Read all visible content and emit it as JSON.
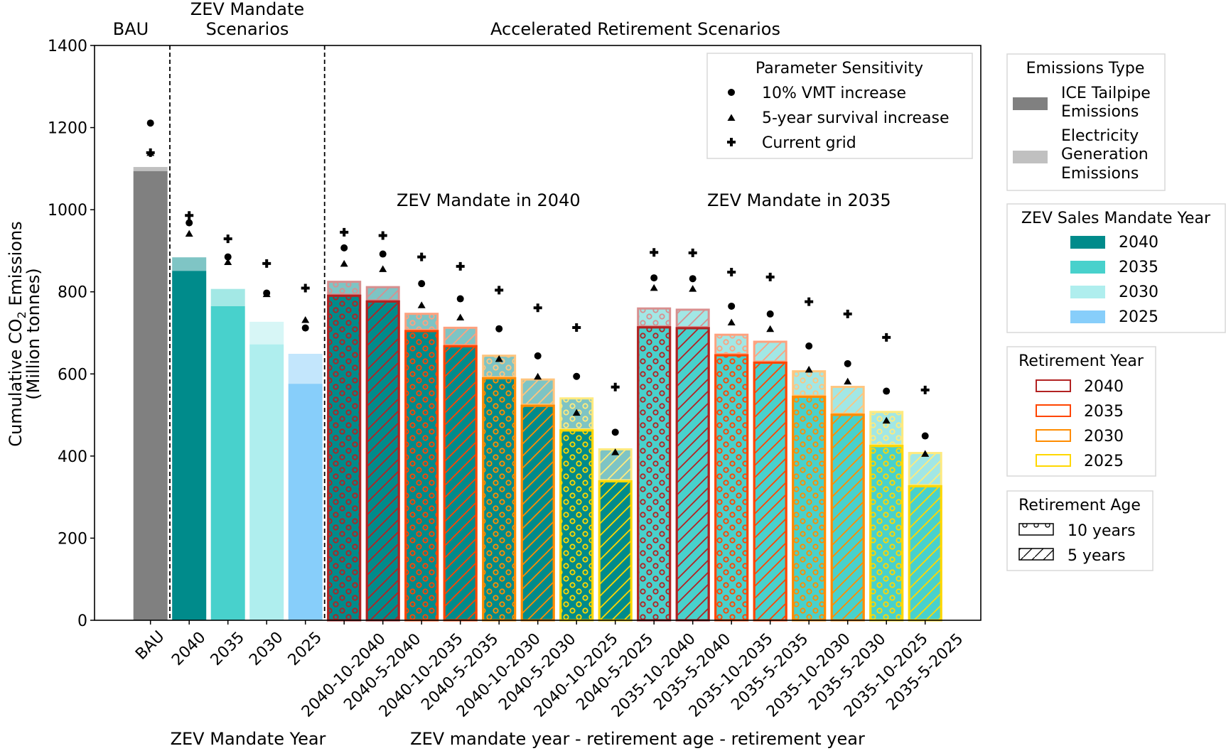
{
  "chart_data": {
    "type": "bar",
    "stacked": true,
    "ylabel_line1": "Cumulative CO",
    "ylabel_sub": "2",
    "ylabel_line1_suffix": " Emissions",
    "ylabel_line2": "(Million tonnes)",
    "ylim": [
      0,
      1400
    ],
    "yticks": [
      0,
      200,
      400,
      600,
      800,
      1000,
      1200,
      1400
    ],
    "grid": false,
    "section_titles": [
      {
        "text": "BAU",
        "lines": [
          "BAU"
        ]
      },
      {
        "text": "ZEV Mandate Scenarios",
        "lines": [
          "ZEV Mandate",
          "Scenarios"
        ]
      },
      {
        "text": "Accelerated Retirement Scenarios",
        "lines": [
          "Accelerated Retirement Scenarios"
        ]
      }
    ],
    "annotations": [
      "ZEV Mandate in 2040",
      "ZEV Mandate in 2035"
    ],
    "xlabels": [
      "ZEV Mandate Year",
      "ZEV mandate year - retirement age - retirement year"
    ],
    "categories": [
      "BAU",
      "2040",
      "2035",
      "2030",
      "2025",
      "2040-10-2040",
      "2040-5-2040",
      "2040-10-2035",
      "2040-5-2035",
      "2040-10-2030",
      "2040-5-2030",
      "2040-10-2025",
      "2040-5-2025",
      "2035-10-2040",
      "2035-5-2040",
      "2035-10-2035",
      "2035-5-2035",
      "2035-10-2030",
      "2035-5-2030",
      "2035-10-2025",
      "2035-5-2025"
    ],
    "series": [
      {
        "name": "ICE Tailpipe Emissions",
        "values": [
          1094,
          851,
          765,
          672,
          576,
          793,
          779,
          707,
          670,
          592,
          525,
          465,
          341,
          716,
          714,
          648,
          630,
          547,
          503,
          427,
          329
        ]
      },
      {
        "name": "Electricity Generation Emissions",
        "values": [
          10,
          33,
          42,
          55,
          73,
          34,
          35,
          42,
          45,
          55,
          64,
          78,
          78,
          46,
          45,
          50,
          51,
          62,
          68,
          83,
          81
        ]
      }
    ],
    "totals": [
      1104,
      884,
      807,
      727,
      649,
      827,
      814,
      749,
      715,
      647,
      589,
      543,
      419,
      762,
      759,
      698,
      681,
      609,
      571,
      510,
      410
    ],
    "sensitivity": [
      {
        "name": "10% VMT increase",
        "marker": "circle",
        "values": [
          1211,
          968,
          885,
          797,
          712,
          907,
          892,
          820,
          783,
          710,
          644,
          594,
          458,
          834,
          832,
          765,
          746,
          668,
          625,
          558,
          449
        ]
      },
      {
        "name": "5-year survival increase",
        "marker": "triangle",
        "values": [
          1139,
          942,
          873,
          795,
          732,
          869,
          856,
          768,
          738,
          637,
          594,
          506,
          410,
          810,
          808,
          726,
          710,
          611,
          582,
          487,
          406
        ]
      },
      {
        "name": "Current grid",
        "marker": "plus",
        "values": [
          1139,
          986,
          929,
          869,
          809,
          945,
          937,
          885,
          862,
          804,
          761,
          713,
          568,
          896,
          895,
          848,
          836,
          776,
          746,
          689,
          561
        ]
      }
    ],
    "bar_attrs": [
      {
        "group": "bau",
        "fill": "#808080",
        "elec_fill": "#c0c0c0"
      },
      {
        "group": "mandate",
        "mandate": "2040"
      },
      {
        "group": "mandate",
        "mandate": "2035"
      },
      {
        "group": "mandate",
        "mandate": "2030"
      },
      {
        "group": "mandate",
        "mandate": "2025"
      },
      {
        "group": "retire",
        "mandate": "2040",
        "age": "10",
        "retire": "2040"
      },
      {
        "group": "retire",
        "mandate": "2040",
        "age": "5",
        "retire": "2040"
      },
      {
        "group": "retire",
        "mandate": "2040",
        "age": "10",
        "retire": "2035"
      },
      {
        "group": "retire",
        "mandate": "2040",
        "age": "5",
        "retire": "2035"
      },
      {
        "group": "retire",
        "mandate": "2040",
        "age": "10",
        "retire": "2030"
      },
      {
        "group": "retire",
        "mandate": "2040",
        "age": "5",
        "retire": "2030"
      },
      {
        "group": "retire",
        "mandate": "2040",
        "age": "10",
        "retire": "2025"
      },
      {
        "group": "retire",
        "mandate": "2040",
        "age": "5",
        "retire": "2025"
      },
      {
        "group": "retire",
        "mandate": "2035",
        "age": "10",
        "retire": "2040"
      },
      {
        "group": "retire",
        "mandate": "2035",
        "age": "5",
        "retire": "2040"
      },
      {
        "group": "retire",
        "mandate": "2035",
        "age": "10",
        "retire": "2035"
      },
      {
        "group": "retire",
        "mandate": "2035",
        "age": "5",
        "retire": "2035"
      },
      {
        "group": "retire",
        "mandate": "2035",
        "age": "10",
        "retire": "2030"
      },
      {
        "group": "retire",
        "mandate": "2035",
        "age": "5",
        "retire": "2030"
      },
      {
        "group": "retire",
        "mandate": "2035",
        "age": "10",
        "retire": "2025"
      },
      {
        "group": "retire",
        "mandate": "2035",
        "age": "5",
        "retire": "2025"
      }
    ],
    "colors": {
      "ice": "#808080",
      "electricity": "#c0c0c0",
      "mandate": {
        "2040": "#008b8b",
        "2035": "#48d1cc",
        "2030": "#afeeee",
        "2025": "#87cefa"
      },
      "retirement": {
        "2040": "#b22222",
        "2035": "#ff4500",
        "2030": "#ff8c00",
        "2025": "#ffd700"
      }
    },
    "legends": {
      "sensitivity": {
        "title": "Parameter Sensitivity",
        "items": [
          {
            "label": "10% VMT increase",
            "marker": "circle"
          },
          {
            "label": "5-year survival increase",
            "marker": "triangle"
          },
          {
            "label": "Current grid",
            "marker": "plus"
          }
        ]
      },
      "emissions_type": {
        "title": "Emissions Type",
        "items": [
          {
            "lines": [
              "ICE Tailpipe",
              "Emissions"
            ],
            "color": "#808080"
          },
          {
            "lines": [
              "Electricity",
              "Generation",
              "Emissions"
            ],
            "color": "#c0c0c0"
          }
        ]
      },
      "mandate_year": {
        "title": "ZEV Sales Mandate Year",
        "items": [
          {
            "label": "2040",
            "color": "#008b8b"
          },
          {
            "label": "2035",
            "color": "#48d1cc"
          },
          {
            "label": "2030",
            "color": "#afeeee"
          },
          {
            "label": "2025",
            "color": "#87cefa"
          }
        ]
      },
      "retirement_year": {
        "title": "Retirement Year",
        "items": [
          {
            "label": "2040",
            "color": "#b22222"
          },
          {
            "label": "2035",
            "color": "#ff4500"
          },
          {
            "label": "2030",
            "color": "#ff8c00"
          },
          {
            "label": "2025",
            "color": "#ffd700"
          }
        ]
      },
      "retirement_age": {
        "title": "Retirement Age",
        "items": [
          {
            "label": "10 years",
            "hatch": "circles"
          },
          {
            "label": "5 years",
            "hatch": "diagonal"
          }
        ]
      }
    }
  }
}
